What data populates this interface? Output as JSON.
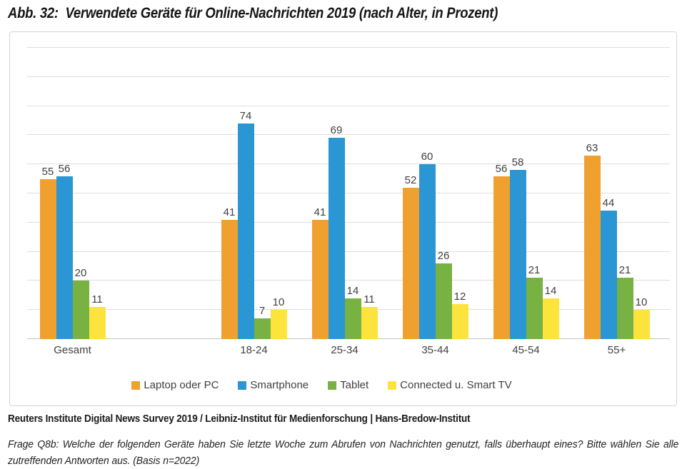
{
  "title": "Abb. 32:  Verwendete Geräte für Online-Nachrichten 2019 (nach Alter, in Prozent)",
  "source_line": "Reuters Institute Digital News Survey 2019 / Leibniz-Institut für Medienforschung | Hans-Bredow-Institut",
  "question_note": "Frage Q8b: Welche der folgenden Geräte haben Sie letzte Woche zum Abrufen von Nachrichten genutzt, falls überhaupt eines? Bitte wählen Sie alle zutreffenden Antworten aus. (Basis n=2022)",
  "chart_data": {
    "type": "bar",
    "title": "Verwendete Geräte für Online-Nachrichten 2019 (nach Alter, in Prozent)",
    "categories": [
      "Gesamt",
      "18-24",
      "25-34",
      "35-44",
      "45-54",
      "55+"
    ],
    "series": [
      {
        "name": "Laptop oder PC",
        "color": "#F0A02F",
        "values": [
          55,
          41,
          41,
          52,
          56,
          63
        ]
      },
      {
        "name": "Smartphone",
        "color": "#2A96D4",
        "values": [
          56,
          74,
          69,
          60,
          58,
          44
        ]
      },
      {
        "name": "Tablet",
        "color": "#78B242",
        "values": [
          20,
          7,
          14,
          26,
          21,
          21
        ]
      },
      {
        "name": "Connected u. Smart TV",
        "color": "#FCE43C",
        "values": [
          11,
          10,
          11,
          12,
          14,
          10
        ]
      }
    ],
    "ylim": [
      0,
      100
    ],
    "grid_step": 10,
    "grid": true,
    "y_axis_labels_visible": false,
    "value_labels": true,
    "legend_position": "bottom",
    "layout_hint": "one empty slot between Gesamt and 18-24 (7 slots total)",
    "colors": {
      "gridline": "#dedede",
      "axis_line": "#c2c2c2",
      "label_text": "#404040",
      "panel_border": "#d6d6d6"
    }
  }
}
